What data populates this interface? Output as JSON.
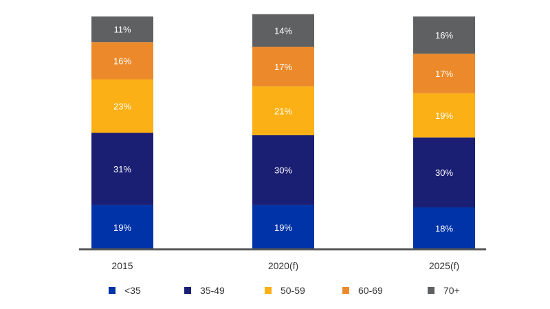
{
  "chart_data": {
    "type": "bar",
    "stacked": true,
    "percent": true,
    "categories": [
      "2015",
      "2020(f)",
      "2025(f)"
    ],
    "series": [
      {
        "name": "<35",
        "color": "#0033a8",
        "values": [
          19,
          19,
          18
        ],
        "labels": [
          "19%",
          "19%",
          "18%"
        ]
      },
      {
        "name": "35-49",
        "color": "#1b1f73",
        "values": [
          31,
          30,
          30
        ],
        "labels": [
          "31%",
          "30%",
          "30%"
        ]
      },
      {
        "name": "50-59",
        "color": "#fbb016",
        "values": [
          23,
          21,
          19
        ],
        "labels": [
          "23%",
          "21%",
          "19%"
        ]
      },
      {
        "name": "60-69",
        "color": "#ec8a2b",
        "values": [
          16,
          17,
          17
        ],
        "labels": [
          "16%",
          "17%",
          "17%"
        ]
      },
      {
        "name": "70+",
        "color": "#5f6062",
        "values": [
          11,
          14,
          16
        ],
        "labels": [
          "11%",
          "14%",
          "16%"
        ]
      }
    ],
    "ylim": [
      0,
      100
    ],
    "legend_position": "bottom",
    "grid": false,
    "axis_color": "#555555"
  }
}
